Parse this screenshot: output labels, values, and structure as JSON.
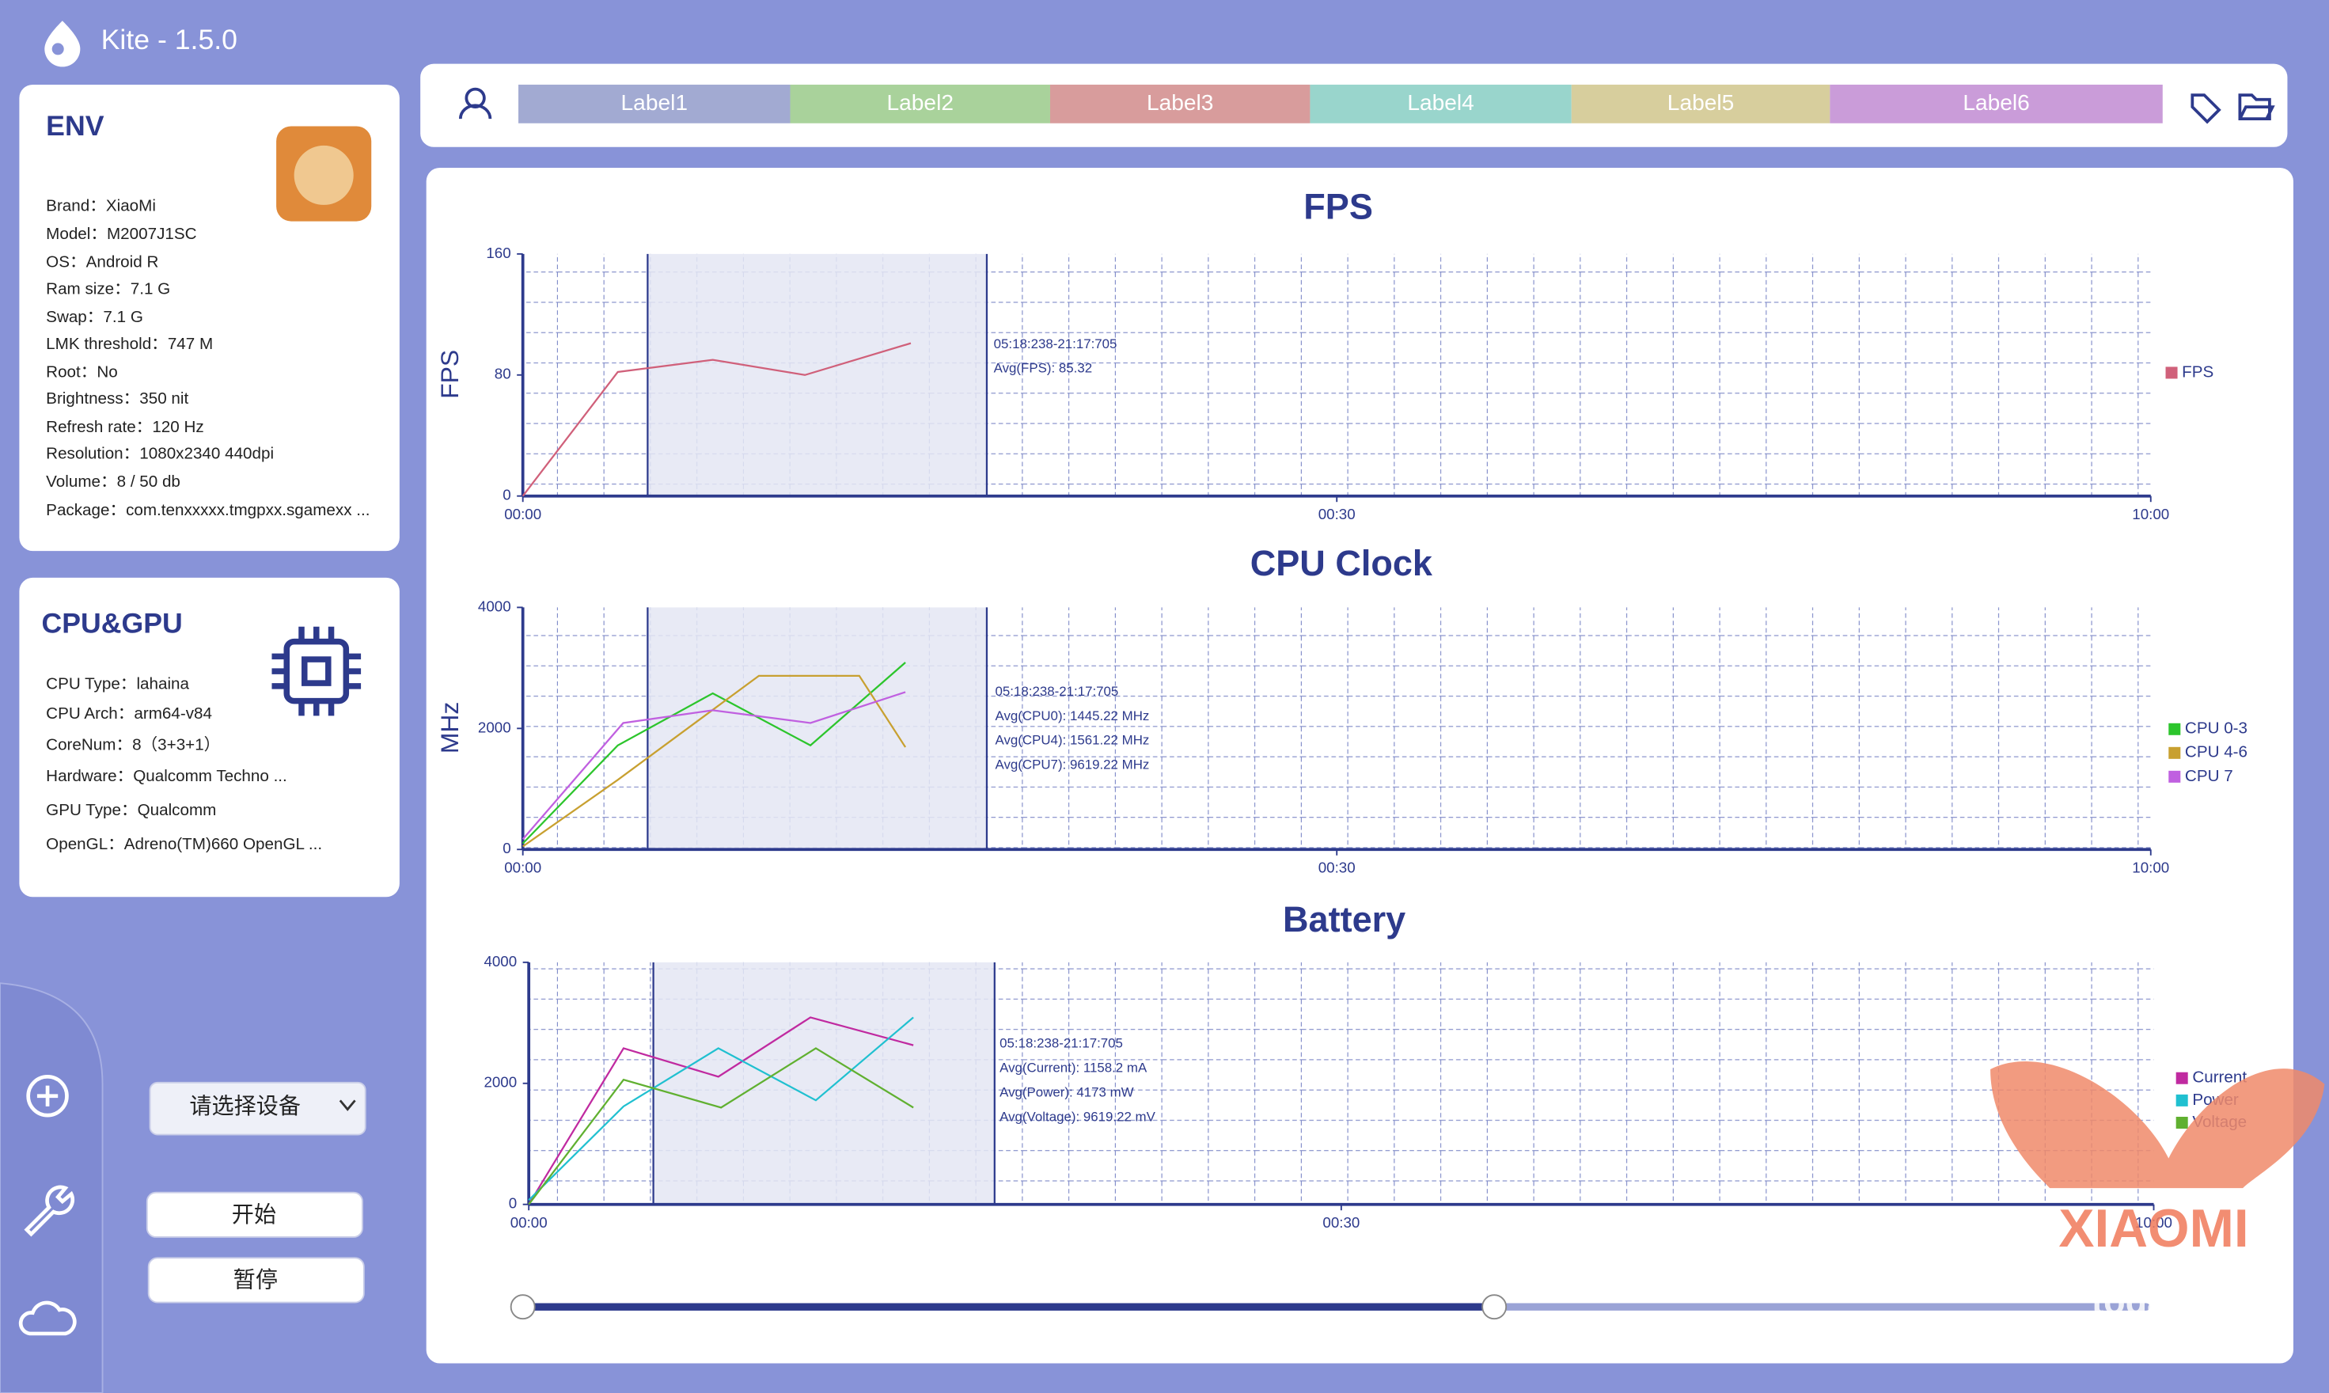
{
  "app": {
    "title": "Kite - 1.5.0"
  },
  "env": {
    "title": "ENV",
    "items": [
      "Brand：XiaoMi",
      "Model：M2007J1SC",
      "OS：Android R",
      "Ram size：7.1 G",
      "Swap：7.1 G",
      "LMK threshold：747 M",
      "Root：No",
      "Brightness：350 nit",
      "Refresh rate：120 Hz",
      "Resolution：1080x2340 440dpi",
      "Volume：8 / 50 db",
      "Package：com.tenxxxxx.tmgpxx.sgamexx ..."
    ]
  },
  "cpu_gpu": {
    "title": "CPU&GPU",
    "items": [
      "CPU Type：lahaina",
      "CPU Arch：arm64-v84",
      "CoreNum：8（3+3+1）",
      "Hardware：Qualcomm Techno ...",
      "GPU Type：Qualcomm",
      "OpenGL：Adreno(TM)660 OpenGL ..."
    ]
  },
  "controls": {
    "device_select": "请选择设备",
    "start": "开始",
    "pause": "暂停"
  },
  "labels": [
    {
      "name": "Label1",
      "color": "#a2aad2"
    },
    {
      "name": "Label2",
      "color": "#a9d29b"
    },
    {
      "name": "Label3",
      "color": "#d89c9c"
    },
    {
      "name": "Label4",
      "color": "#99d5cc"
    },
    {
      "name": "Label5",
      "color": "#d7ce9d"
    },
    {
      "name": "Label6",
      "color": "#ca9cd9"
    }
  ],
  "watermark": [
    "XIAOMI",
    "today.it"
  ],
  "chart_data": [
    {
      "type": "line",
      "title": "FPS",
      "y_label": "FPS",
      "xlim": [
        0,
        60
      ],
      "xticks": [
        {
          "value": 0,
          "label": "00:00"
        },
        {
          "value": 30,
          "label": "00:30"
        },
        {
          "value": 60,
          "label": "10:00"
        }
      ],
      "ylim": [
        0,
        160
      ],
      "yticks": [
        0,
        80,
        160
      ],
      "selection": [
        4.6,
        17.1
      ],
      "annotations": [
        "05:18:238-21:17:705",
        "Avg(FPS): 85.32"
      ],
      "series": [
        {
          "name": "FPS",
          "color": "#d0607a",
          "x": [
            0,
            3.5,
            7,
            10.4,
            14.3
          ],
          "values": [
            0,
            82,
            90,
            80,
            101
          ]
        }
      ]
    },
    {
      "type": "line",
      "title": "CPU Clock",
      "y_label": "MHz",
      "xlim": [
        0,
        60
      ],
      "xticks": [
        {
          "value": 0,
          "label": "00:00"
        },
        {
          "value": 30,
          "label": "00:30"
        },
        {
          "value": 60,
          "label": "10:00"
        }
      ],
      "ylim": [
        0,
        4000
      ],
      "yticks": [
        0,
        2000,
        4000
      ],
      "selection": [
        4.6,
        17.1
      ],
      "annotations": [
        "05:18:238-21:17:705",
        "Avg(CPU0): 1445.22 MHz",
        "Avg(CPU4): 1561.22 MHz",
        "Avg(CPU7): 9619.22 MHz"
      ],
      "series": [
        {
          "name": "CPU 0-3",
          "color": "#2cc52c",
          "x": [
            0,
            3.5,
            7,
            10.6,
            14.1
          ],
          "values": [
            100,
            1720,
            2580,
            1720,
            3090
          ]
        },
        {
          "name": "CPU 4-6",
          "color": "#c8a030",
          "x": [
            0,
            3.5,
            8.7,
            12.4,
            14.1
          ],
          "values": [
            50,
            1150,
            2870,
            2870,
            1690
          ]
        },
        {
          "name": "CPU 7",
          "color": "#c060e0",
          "x": [
            0,
            3.7,
            7,
            10.6,
            14.1
          ],
          "values": [
            170,
            2090,
            2300,
            2090,
            2600
          ]
        }
      ]
    },
    {
      "type": "line",
      "title": "Battery",
      "xlim": [
        0,
        60
      ],
      "xticks": [
        {
          "value": 0,
          "label": "00:00"
        },
        {
          "value": 30,
          "label": "00:30"
        },
        {
          "value": 60,
          "label": "10:00"
        }
      ],
      "ylim": [
        0,
        4000
      ],
      "yticks": [
        0,
        2000,
        4000
      ],
      "selection": [
        4.6,
        17.2
      ],
      "annotations": [
        "05:18:238-21:17:705",
        "Avg(Current): 1158.2 mA",
        "Avg(Power): 4173 mW",
        "Avg(Voltage): 9619.22 mV"
      ],
      "series": [
        {
          "name": "Current",
          "color": "#c02aa0",
          "x": [
            0,
            3.5,
            7,
            10.4,
            14.2
          ],
          "values": [
            0,
            2580,
            2110,
            3090,
            2630
          ]
        },
        {
          "name": "Power",
          "color": "#20c0d0",
          "x": [
            0,
            3.5,
            7,
            10.6,
            14.2
          ],
          "values": [
            70,
            1620,
            2580,
            1720,
            3090
          ]
        },
        {
          "name": "Voltage",
          "color": "#60b030",
          "x": [
            0,
            3.5,
            7.1,
            10.6,
            14.2
          ],
          "values": [
            0,
            2060,
            1600,
            2580,
            1600
          ]
        }
      ]
    }
  ]
}
